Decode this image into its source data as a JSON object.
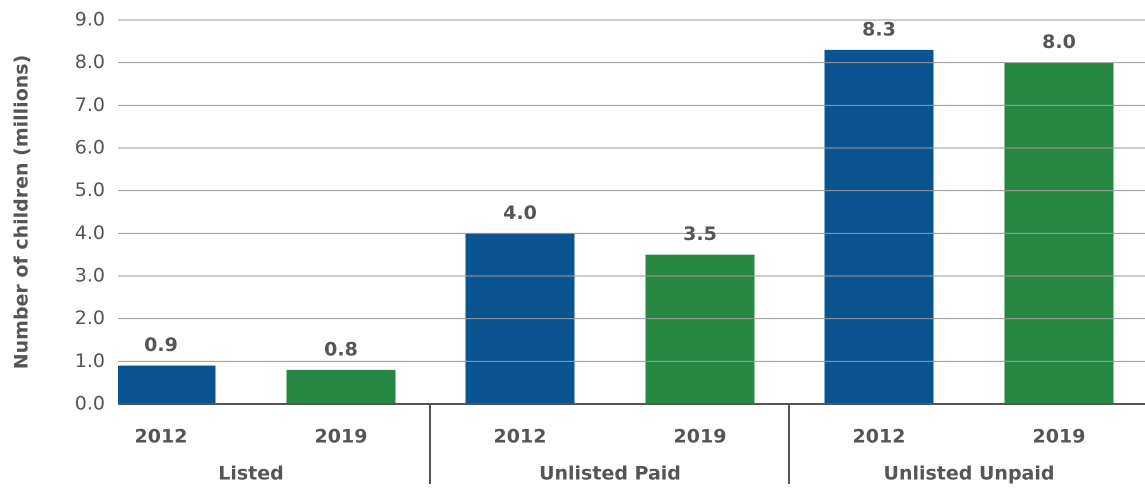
{
  "chart_data": {
    "type": "bar",
    "y_label": "Number of children (millions)",
    "categories": [
      "Listed",
      "Unlisted Paid",
      "Unlisted Unpaid"
    ],
    "series": [
      {
        "name": "2012",
        "color": "#0a5591",
        "values": [
          0.9,
          4.0,
          8.3
        ],
        "value_labels": [
          "0.9",
          "4.0",
          "8.3"
        ]
      },
      {
        "name": "2019",
        "color": "#268742",
        "values": [
          0.8,
          3.5,
          8.0
        ],
        "value_labels": [
          "0.8",
          "3.5",
          "8.0"
        ]
      }
    ],
    "ylim": [
      0,
      9
    ],
    "yticks": [
      {
        "value": 0,
        "label": "0.0"
      },
      {
        "value": 1,
        "label": "1.0"
      },
      {
        "value": 2,
        "label": "2.0"
      },
      {
        "value": 3,
        "label": "3.0"
      },
      {
        "value": 4,
        "label": "4.0"
      },
      {
        "value": 5,
        "label": "5.0"
      },
      {
        "value": 6,
        "label": "6.0"
      },
      {
        "value": 7,
        "label": "7.0"
      },
      {
        "value": 8,
        "label": "8.0"
      },
      {
        "value": 9,
        "label": "9.0"
      }
    ],
    "grid": true
  }
}
